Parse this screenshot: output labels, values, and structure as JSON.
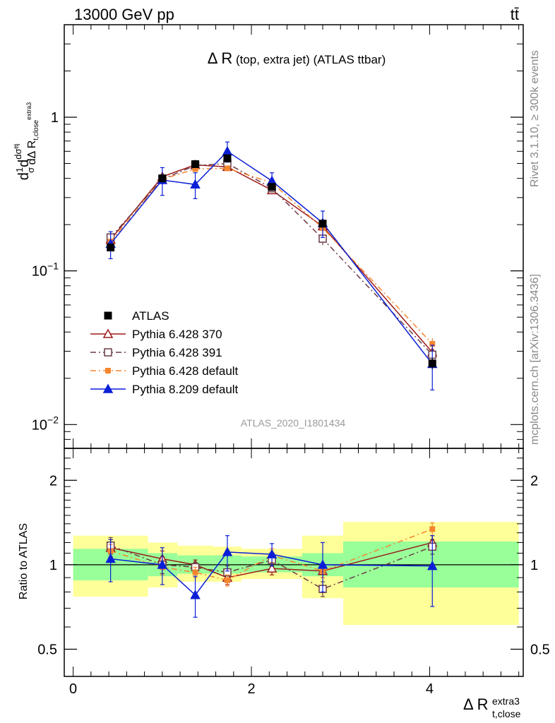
{
  "header": {
    "energy_label": "13000 GeV pp",
    "process_label": "tt̄",
    "rivet_label": "Rivet 3.1.10, ≥ 300k events",
    "mcplots_label": "mcplots.cern.ch [arXiv:1306.3436]",
    "analysis_id": "ATLAS_2020_I1801434"
  },
  "chart_data": [
    {
      "type": "line",
      "panel": "main",
      "title_main": "Δ R",
      "title_rest": " (top, extra jet) (ATLAS ttbar)",
      "ylabel": "dσ/dΔR / σ",
      "yscale": "log",
      "ylim": [
        0.007,
        4.0
      ],
      "xlim": [
        -0.1,
        5.05
      ],
      "y_ticks": [
        {
          "v": 1,
          "label": "1"
        },
        {
          "v": 0.1,
          "label": "10",
          "sup": "−1"
        },
        {
          "v": 0.01,
          "label": "10",
          "sup": "−2"
        }
      ],
      "x": [
        0.42,
        1.0,
        1.37,
        1.73,
        2.23,
        2.8,
        4.03
      ],
      "series": [
        {
          "name": "ATLAS",
          "values": [
            0.142,
            0.4,
            0.495,
            0.54,
            0.352,
            0.203,
            0.025
          ],
          "yerr": [
            0.008,
            0.015,
            0.015,
            0.02,
            0.01,
            0.008,
            0.002
          ],
          "xerr": [
            0.42,
            0.16,
            0.2,
            0.16,
            0.34,
            0.23,
            1.0
          ],
          "color": "#000000",
          "marker": "square-filled",
          "dash": ""
        },
        {
          "name": "Pythia 6.428 370",
          "values": [
            0.16,
            0.41,
            0.49,
            0.475,
            0.335,
            0.195,
            0.0295
          ],
          "yerr": [
            0.015,
            0.03,
            0.015,
            0.025,
            0.02,
            0.015,
            0.003
          ],
          "color": "#9b1b1b",
          "marker": "triangle-open",
          "dash": ""
        },
        {
          "name": "Pythia 6.428 391",
          "values": [
            0.165,
            0.395,
            0.485,
            0.5,
            0.345,
            0.162,
            0.0285
          ],
          "yerr": [
            0.015,
            0.03,
            0.015,
            0.025,
            0.02,
            0.015,
            0.003
          ],
          "color": "#6b3b45",
          "marker": "square-open",
          "dash": "8,4,2,4"
        },
        {
          "name": "Pythia 6.428 default",
          "values": [
            0.155,
            0.395,
            0.46,
            0.465,
            0.375,
            0.19,
            0.0335
          ],
          "yerr": [
            0.012,
            0.03,
            0.015,
            0.02,
            0.025,
            0.015,
            0.003
          ],
          "color": "#f4862e",
          "marker": "square-filled",
          "dash": "8,4,2,4"
        },
        {
          "name": "Pythia 8.209 default",
          "values": [
            0.15,
            0.39,
            0.365,
            0.6,
            0.385,
            0.205,
            0.0248
          ],
          "yerr": [
            0.03,
            0.08,
            0.07,
            0.09,
            0.05,
            0.04,
            0.008
          ],
          "color": "#0a1fd6",
          "marker": "triangle-filled",
          "dash": ""
        }
      ]
    },
    {
      "type": "line",
      "panel": "ratio",
      "ylabel": "Ratio to ATLAS",
      "xlabel_main": "Δ R",
      "xlabel_sup": "extra3",
      "xlabel_sub": "t,close",
      "yscale": "log",
      "ylim": [
        0.4,
        2.6
      ],
      "xlim": [
        -0.1,
        5.05
      ],
      "y_ticks": [
        {
          "v": 0.5,
          "label": "0.5"
        },
        {
          "v": 1,
          "label": "1"
        },
        {
          "v": 2,
          "label": "2"
        }
      ],
      "x_ticks": [
        {
          "v": 0,
          "label": "0"
        },
        {
          "v": 2,
          "label": "2"
        },
        {
          "v": 4,
          "label": "4"
        }
      ],
      "bands": [
        {
          "x0": 0.0,
          "x1": 0.84,
          "g_lo": 0.88,
          "g_hi": 1.14,
          "y_lo": 0.77,
          "y_hi": 1.27
        },
        {
          "x0": 0.84,
          "x1": 1.17,
          "g_lo": 0.91,
          "g_hi": 1.1,
          "y_lo": 0.83,
          "y_hi": 1.2
        },
        {
          "x0": 1.17,
          "x1": 1.57,
          "g_lo": 0.93,
          "g_hi": 1.08,
          "y_lo": 0.87,
          "y_hi": 1.17
        },
        {
          "x0": 1.57,
          "x1": 1.89,
          "g_lo": 0.93,
          "g_hi": 1.08,
          "y_lo": 0.87,
          "y_hi": 1.16
        },
        {
          "x0": 1.89,
          "x1": 2.57,
          "g_lo": 0.94,
          "g_hi": 1.07,
          "y_lo": 0.89,
          "y_hi": 1.14
        },
        {
          "x0": 2.57,
          "x1": 3.03,
          "g_lo": 0.91,
          "g_hi": 1.1,
          "y_lo": 0.76,
          "y_hi": 1.27
        },
        {
          "x0": 3.03,
          "x1": 5.0,
          "g_lo": 0.83,
          "g_hi": 1.21,
          "y_lo": 0.61,
          "y_hi": 1.42
        }
      ],
      "x": [
        0.42,
        1.0,
        1.37,
        1.73,
        2.23,
        2.8,
        4.03
      ],
      "series": [
        {
          "name": "Pythia 6.428 370",
          "values": [
            1.15,
            1.05,
            1.0,
            0.9,
            0.97,
            0.95,
            1.2
          ],
          "yerr": [
            0.08,
            0.07,
            0.04,
            0.05,
            0.05,
            0.05,
            0.07
          ],
          "color": "#9b1b1b",
          "marker": "triangle-open",
          "dash": ""
        },
        {
          "name": "Pythia 6.428 391",
          "values": [
            1.17,
            1.0,
            0.98,
            0.94,
            1.04,
            0.82,
            1.16
          ],
          "yerr": [
            0.08,
            0.07,
            0.04,
            0.05,
            0.05,
            0.05,
            0.07
          ],
          "color": "#6b3b45",
          "marker": "square-open",
          "dash": "8,4,2,4"
        },
        {
          "name": "Pythia 6.428 default",
          "values": [
            1.12,
            0.98,
            0.94,
            0.88,
            1.08,
            0.95,
            1.34
          ],
          "yerr": [
            0.06,
            0.06,
            0.04,
            0.04,
            0.06,
            0.05,
            0.07
          ],
          "color": "#f4862e",
          "marker": "square-filled",
          "dash": "8,4,2,4"
        },
        {
          "name": "Pythia 8.209 default",
          "values": [
            1.05,
            1.0,
            0.78,
            1.11,
            1.09,
            1.0,
            0.99
          ],
          "yerr": [
            0.18,
            0.15,
            0.13,
            0.16,
            0.1,
            0.2,
            0.28
          ],
          "color": "#0a1fd6",
          "marker": "triangle-filled",
          "dash": ""
        }
      ]
    }
  ]
}
